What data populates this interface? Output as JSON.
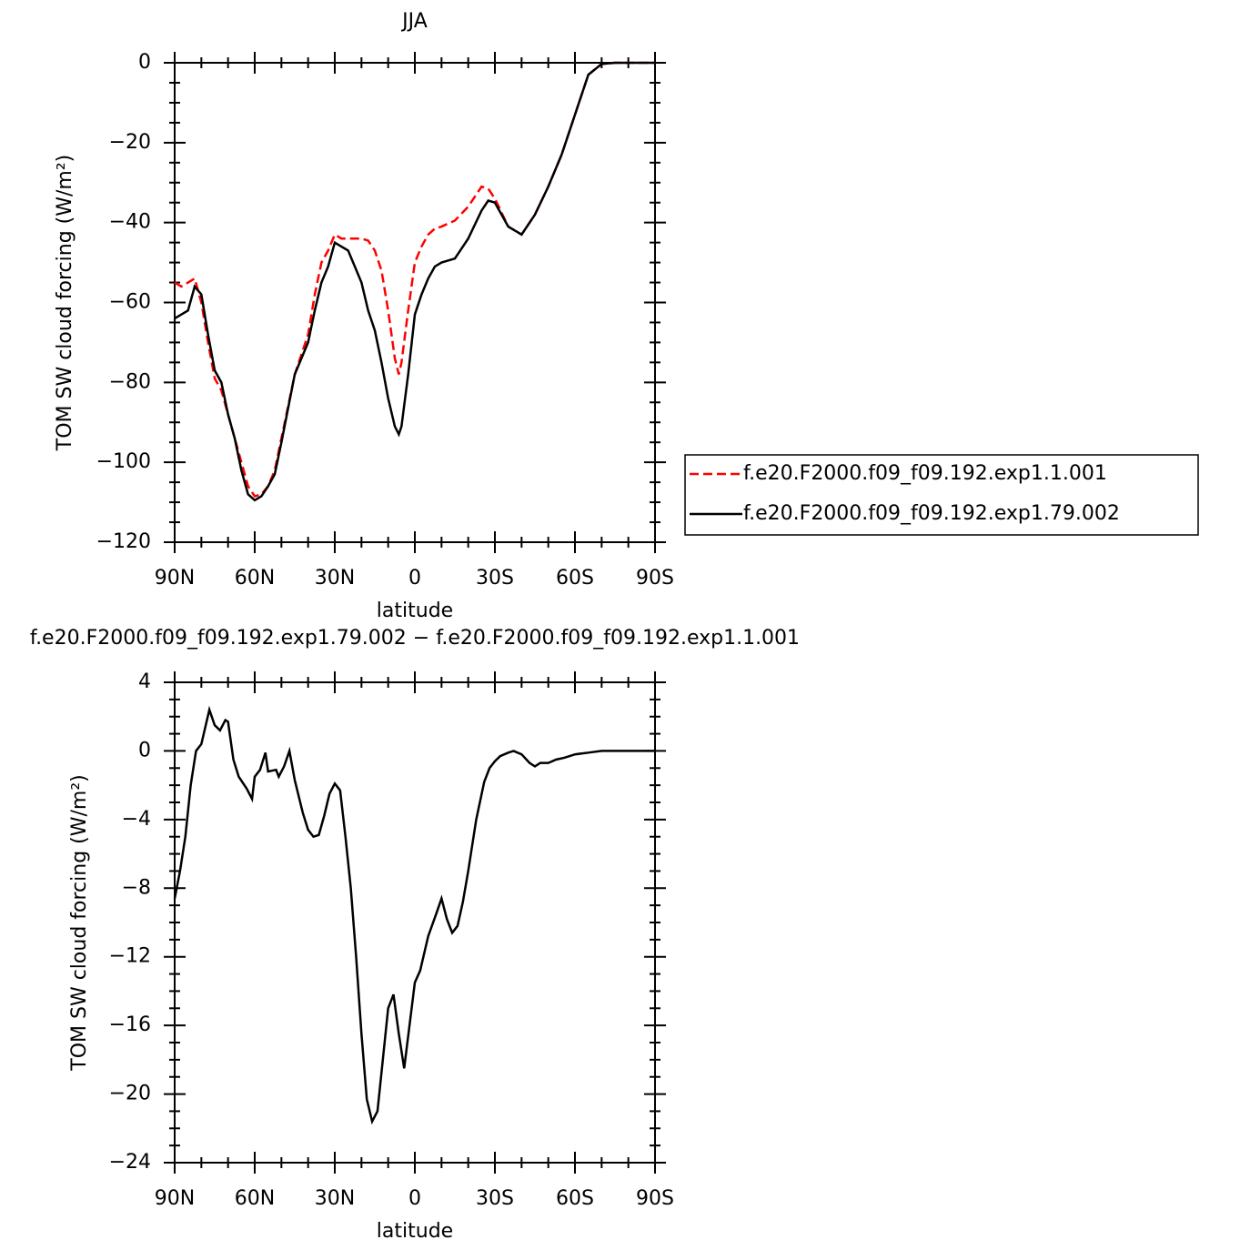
{
  "chart_data": [
    {
      "type": "line",
      "title": "JJA",
      "xlabel": "latitude",
      "ylabel": "TOM SW cloud forcing (W/m²)",
      "x": [
        90,
        87.5,
        85,
        82.5,
        80,
        77.5,
        75,
        72.5,
        70,
        67.5,
        65,
        62.5,
        60,
        57.5,
        55,
        52.5,
        50,
        45,
        40,
        37.5,
        35,
        32.5,
        30,
        27.5,
        25,
        20,
        17.5,
        15,
        12.5,
        10,
        7.5,
        6,
        5,
        2.5,
        0,
        -2.5,
        -5,
        -7.5,
        -10,
        -15,
        -20,
        -25,
        -27.5,
        -30,
        -35,
        -40,
        -45,
        -50,
        -55,
        -60,
        -65,
        -70,
        -75,
        -80,
        -90
      ],
      "series": [
        {
          "name": "f.e20.F2000.f09_f09.192.exp1.1.001",
          "color": "#ff0000",
          "line_style": "dashed",
          "values": [
            -55,
            -56,
            -55,
            -54,
            -60,
            -70,
            -79,
            -82,
            -88,
            -94,
            -100,
            -106,
            -108.5,
            -108,
            -106,
            -102,
            -94,
            -78,
            -68,
            -58,
            -50,
            -47,
            -43,
            -44,
            -44,
            -44,
            -44.5,
            -47,
            -52,
            -62,
            -74,
            -78,
            -75,
            -62,
            -50,
            -46,
            -43,
            -41.5,
            -41,
            -39.5,
            -36,
            -31,
            -31.5,
            -34,
            -41,
            -43,
            -38,
            -31,
            -23,
            -13,
            -3,
            -0.3,
            0,
            0,
            0
          ]
        },
        {
          "name": "f.e20.F2000.f09_f09.192.exp1.79.002",
          "color": "#000000",
          "line_style": "solid",
          "values": [
            -64,
            -63,
            -62,
            -56,
            -58,
            -68,
            -77,
            -80,
            -88,
            -94,
            -102,
            -108,
            -109.5,
            -108.5,
            -106,
            -103,
            -95,
            -78,
            -70,
            -62,
            -55,
            -51,
            -45,
            -46,
            -47,
            -55,
            -62,
            -67,
            -75,
            -84,
            -91,
            -93,
            -91,
            -78,
            -63,
            -58,
            -54,
            -51,
            -50,
            -49,
            -44,
            -37,
            -34.5,
            -35,
            -41,
            -43,
            -38,
            -31,
            -23,
            -13,
            -3,
            -0.3,
            0,
            0,
            0
          ]
        }
      ],
      "xlim": [
        90,
        -90
      ],
      "xticks": [
        {
          "value": 90,
          "label": "90N"
        },
        {
          "value": 60,
          "label": "60N"
        },
        {
          "value": 30,
          "label": "30N"
        },
        0,
        {
          "value": -30,
          "label": "30S"
        },
        {
          "value": -60,
          "label": "60S"
        },
        {
          "value": -90,
          "label": "90S"
        }
      ],
      "ylim": [
        -120,
        0
      ],
      "yticks": [
        0,
        {
          "value": -20,
          "label": "−20"
        },
        {
          "value": -40,
          "label": "−40"
        },
        {
          "value": -60,
          "label": "−60"
        },
        {
          "value": -80,
          "label": "−80"
        },
        {
          "value": -100,
          "label": "−100"
        },
        {
          "value": -120,
          "label": "−120"
        }
      ],
      "legend": "right"
    },
    {
      "type": "line",
      "title": "f.e20.F2000.f09_f09.192.exp1.79.002 − f.e20.F2000.f09_f09.192.exp1.1.001",
      "xlabel": "latitude",
      "ylabel": "TOM SW cloud forcing (W/m²)",
      "x": [
        90,
        88,
        86,
        84,
        82,
        80,
        77,
        75,
        73,
        71,
        70,
        68,
        66,
        63,
        61,
        60,
        58,
        56,
        55,
        52,
        51,
        49,
        47,
        45,
        42,
        40,
        38,
        36,
        34,
        32,
        30,
        28,
        26,
        24,
        22,
        20,
        18,
        16,
        14,
        12,
        10,
        8,
        6,
        4,
        2,
        0,
        -2,
        -5,
        -8,
        -10,
        -12,
        -14,
        -16,
        -18,
        -20,
        -23,
        -26,
        -28,
        -30,
        -32,
        -35,
        -37,
        -40,
        -43,
        -45,
        -47,
        -50,
        -53,
        -56,
        -60,
        -65,
        -70,
        -90
      ],
      "series": [
        {
          "color": "#000000",
          "line_style": "solid",
          "values": [
            -8.6,
            -7,
            -5,
            -2,
            0,
            0.4,
            2.4,
            1.5,
            1.2,
            1.8,
            1.7,
            -0.5,
            -1.5,
            -2.2,
            -2.8,
            -1.5,
            -1.1,
            -0.1,
            -1.2,
            -1.1,
            -1.5,
            -0.9,
            0,
            -1.7,
            -3.6,
            -4.6,
            -5,
            -4.9,
            -3.8,
            -2.5,
            -1.9,
            -2.3,
            -5,
            -8,
            -12,
            -16.5,
            -20.3,
            -21.6,
            -21,
            -18,
            -15,
            -14.2,
            -16.5,
            -18.5,
            -16,
            -13.5,
            -12.8,
            -10.8,
            -9.5,
            -8.6,
            -9.8,
            -10.6,
            -10.2,
            -8.8,
            -7,
            -4,
            -1.8,
            -1,
            -0.6,
            -0.3,
            -0.1,
            0,
            -0.2,
            -0.7,
            -0.9,
            -0.7,
            -0.7,
            -0.5,
            -0.4,
            -0.2,
            -0.1,
            0,
            0
          ]
        }
      ],
      "xlim": [
        90,
        -90
      ],
      "xticks": [
        {
          "value": 90,
          "label": "90N"
        },
        {
          "value": 60,
          "label": "60N"
        },
        {
          "value": 30,
          "label": "30N"
        },
        0,
        {
          "value": -30,
          "label": "30S"
        },
        {
          "value": -60,
          "label": "60S"
        },
        {
          "value": -90,
          "label": "90S"
        }
      ],
      "ylim": [
        -24,
        4
      ],
      "yticks": [
        4,
        0,
        {
          "value": -4,
          "label": "−4"
        },
        {
          "value": -8,
          "label": "−8"
        },
        {
          "value": -12,
          "label": "−12"
        },
        {
          "value": -16,
          "label": "−16"
        },
        {
          "value": -20,
          "label": "−20"
        },
        {
          "value": -24,
          "label": "−24"
        }
      ]
    }
  ]
}
